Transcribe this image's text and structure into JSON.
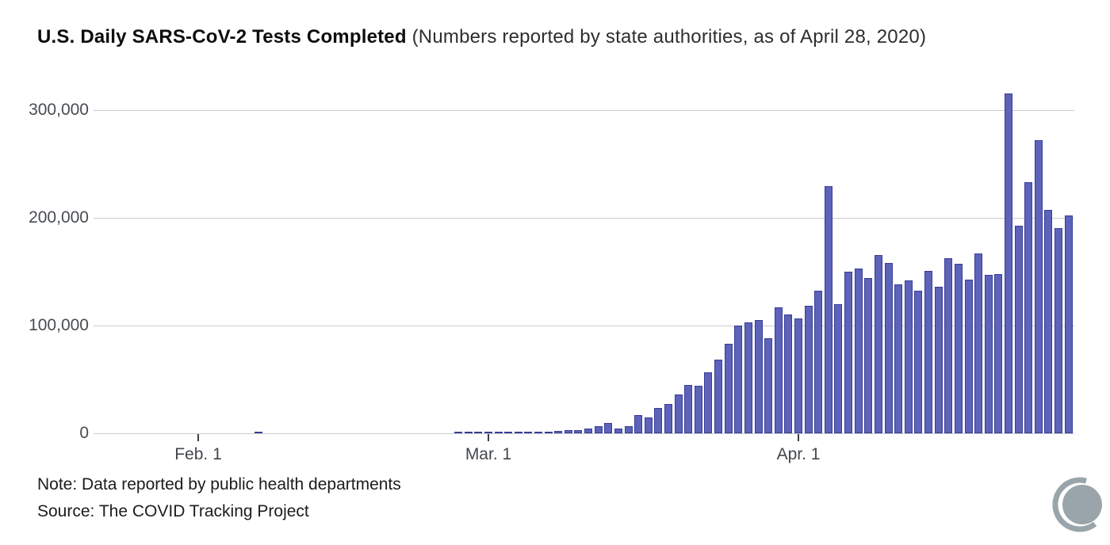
{
  "header": {
    "title_bold": "U.S. Daily SARS-CoV-2 Tests Completed",
    "title_rest": " (Numbers reported by state authorities, as of April 28, 2020)"
  },
  "footer": {
    "note": "Note: Data reported by public health departments",
    "source": "Source: The COVID Tracking Project",
    "logo_name": "covid-tracking-project-logo"
  },
  "colors": {
    "bar_fill": "#5c63b8",
    "bar_outline": "#383d97",
    "gridline": "#cccccc",
    "axis_text": "#45494e",
    "title_text": "#0d0d0d",
    "note_text": "#1c1c1c",
    "logo_gray": "#9aa4ab",
    "background": "#ffffff"
  },
  "chart_data": {
    "type": "bar",
    "title": "U.S. Daily SARS-CoV-2 Tests Completed",
    "subtitle": "(Numbers reported by state authorities, as of April 28, 2020)",
    "xlabel": "",
    "ylabel": "",
    "ylim": [
      0,
      320000
    ],
    "grid": true,
    "legend": "none",
    "y_ticks": [
      {
        "value": 0,
        "label": "0"
      },
      {
        "value": 100000,
        "label": "100,000"
      },
      {
        "value": 200000,
        "label": "200,000"
      },
      {
        "value": 300000,
        "label": "300,000"
      }
    ],
    "x_ticks": [
      {
        "day": 0,
        "label": "Feb. 1"
      },
      {
        "day": 29,
        "label": "Mar. 1"
      },
      {
        "day": 60,
        "label": "Apr. 1"
      }
    ],
    "points": {
      "dates": [
        "Feb 7",
        "Feb 27",
        "Feb 28",
        "Feb 29",
        "Mar 1",
        "Mar 2",
        "Mar 3",
        "Mar 4",
        "Mar 5",
        "Mar 6",
        "Mar 7",
        "Mar 8",
        "Mar 9",
        "Mar 10",
        "Mar 11",
        "Mar 12",
        "Mar 13",
        "Mar 14",
        "Mar 15",
        "Mar 16",
        "Mar 17",
        "Mar 18",
        "Mar 19",
        "Mar 20",
        "Mar 21",
        "Mar 22",
        "Mar 23",
        "Mar 24",
        "Mar 25",
        "Mar 26",
        "Mar 27",
        "Mar 28",
        "Mar 29",
        "Mar 30",
        "Mar 31",
        "Apr 1",
        "Apr 2",
        "Apr 3",
        "Apr 4",
        "Apr 5",
        "Apr 6",
        "Apr 7",
        "Apr 8",
        "Apr 9",
        "Apr 10",
        "Apr 11",
        "Apr 12",
        "Apr 13",
        "Apr 14",
        "Apr 15",
        "Apr 16",
        "Apr 17",
        "Apr 18",
        "Apr 19",
        "Apr 20",
        "Apr 21",
        "Apr 22",
        "Apr 23",
        "Apr 24",
        "Apr 25",
        "Apr 26",
        "Apr 27",
        "Apr 28"
      ],
      "day_offsets_from_feb1": [
        6,
        26,
        27,
        28,
        29,
        30,
        31,
        32,
        33,
        34,
        35,
        36,
        37,
        38,
        39,
        40,
        41,
        42,
        43,
        44,
        45,
        46,
        47,
        48,
        49,
        50,
        51,
        52,
        53,
        54,
        55,
        56,
        57,
        58,
        59,
        60,
        61,
        62,
        63,
        64,
        65,
        66,
        67,
        68,
        69,
        70,
        71,
        72,
        73,
        74,
        75,
        76,
        77,
        78,
        79,
        80,
        81,
        82,
        83,
        84,
        85,
        86,
        87
      ],
      "values": [
        1200,
        500,
        550,
        700,
        750,
        950,
        1000,
        1250,
        1300,
        1500,
        1700,
        2000,
        2600,
        3300,
        4600,
        6800,
        9800,
        4300,
        6900,
        16800,
        14500,
        23700,
        27500,
        36000,
        45000,
        44200,
        56500,
        68500,
        83000,
        100000,
        103000,
        105000,
        88000,
        117000,
        110500,
        106500,
        118500,
        132500,
        229500,
        120000,
        150000,
        153000,
        144000,
        165500,
        158000,
        138000,
        142000,
        132500,
        151000,
        136000,
        162500,
        157500,
        142500,
        167000,
        147000,
        148000,
        315500,
        192500,
        233000,
        272000,
        207500,
        190500,
        202000
      ]
    }
  }
}
